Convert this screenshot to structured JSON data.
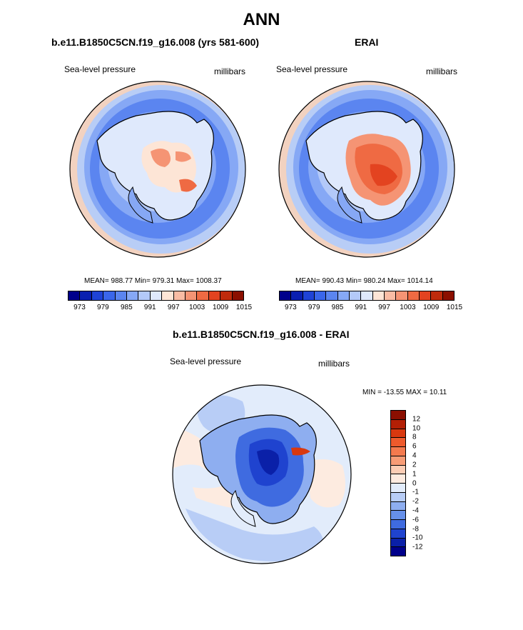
{
  "title": "ANN",
  "panels": [
    {
      "title": "b.e11.B1850C5CN.f19_g16.008 (yrs 581-600)",
      "variable": "Sea-level pressure",
      "units": "millibars",
      "stats": "MEAN= 988.77  Min= 979.31  Max= 1008.37",
      "colorbar_colors": [
        "#00008b",
        "#0a1fb0",
        "#1f43d6",
        "#3a66ea",
        "#5b85f0",
        "#86a8f5",
        "#b3c9f9",
        "#dfe9fc",
        "#fde5d6",
        "#f9bca4",
        "#f59474",
        "#ef6a43",
        "#e34320",
        "#bf2b0c",
        "#8b0f00"
      ],
      "colorbar_ticks": [
        "973",
        "979",
        "985",
        "991",
        "997",
        "1003",
        "1009",
        "1015"
      ]
    },
    {
      "title": "ERAI",
      "variable": "Sea-level pressure",
      "units": "millibars",
      "stats": "MEAN= 990.43  Min= 980.24  Max= 1014.14",
      "colorbar_colors": [
        "#00008b",
        "#0a1fb0",
        "#1f43d6",
        "#3a66ea",
        "#5b85f0",
        "#86a8f5",
        "#b3c9f9",
        "#dfe9fc",
        "#fde5d6",
        "#f9bca4",
        "#f59474",
        "#ef6a43",
        "#e34320",
        "#bf2b0c",
        "#8b0f00"
      ],
      "colorbar_ticks": [
        "973",
        "979",
        "985",
        "991",
        "997",
        "1003",
        "1009",
        "1015"
      ]
    }
  ],
  "diff_panel": {
    "title": "b.e11.B1850C5CN.f19_g16.008 - ERAI",
    "variable": "Sea-level pressure",
    "units": "millibars",
    "stats": "MIN = -13.55 MAX =  10.11",
    "colorbar_colors": [
      "#8b0f00",
      "#b31f05",
      "#d8380f",
      "#ee5a2c",
      "#f47a4e",
      "#f79c76",
      "#fbcdb5",
      "#fdebe0",
      "#e2ecfb",
      "#b8cdf6",
      "#8eaef0",
      "#6690ea",
      "#3f6be0",
      "#1f43cf",
      "#0a20a8",
      "#00008b"
    ],
    "colorbar_ticks": [
      "12",
      "10",
      "8",
      "6",
      "4",
      "2",
      "1",
      "0",
      "-1",
      "-2",
      "-4",
      "-6",
      "-8",
      "-10",
      "-12"
    ]
  }
}
